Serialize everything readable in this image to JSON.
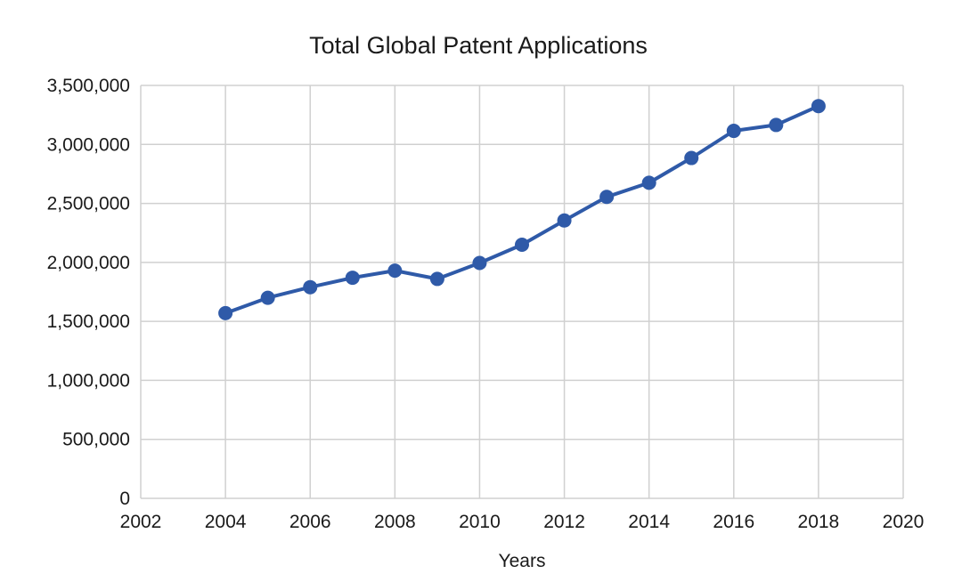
{
  "chart_data": {
    "type": "scatter",
    "title": "Total Global Patent Applications",
    "xlabel": "Years",
    "ylabel": "",
    "xlim": [
      2002,
      2020
    ],
    "ylim": [
      0,
      3500000
    ],
    "xticks": [
      2002,
      2004,
      2006,
      2008,
      2010,
      2012,
      2014,
      2016,
      2018,
      2020
    ],
    "yticks": [
      0,
      500000,
      1000000,
      1500000,
      2000000,
      2500000,
      3000000,
      3500000
    ],
    "xtick_labels": [
      "2002",
      "2004",
      "2006",
      "2008",
      "2010",
      "2012",
      "2014",
      "2016",
      "2018",
      "2020"
    ],
    "ytick_labels": [
      "0",
      "500,000",
      "1,000,000",
      "1,500,000",
      "2,000,000",
      "2,500,000",
      "3,000,000",
      "3,500,000"
    ],
    "grid": true,
    "legend": "none",
    "marker": "circle",
    "lines_connected": true,
    "series": [
      {
        "color": "#2f5aa8",
        "x": [
          2004,
          2005,
          2006,
          2007,
          2008,
          2009,
          2010,
          2011,
          2012,
          2013,
          2014,
          2015,
          2016,
          2017,
          2018
        ],
        "y": [
          1570000,
          1700000,
          1790000,
          1870000,
          1930000,
          1860000,
          1995000,
          2150000,
          2355000,
          2555000,
          2675000,
          2885000,
          3115000,
          3165000,
          3325000
        ]
      }
    ]
  }
}
